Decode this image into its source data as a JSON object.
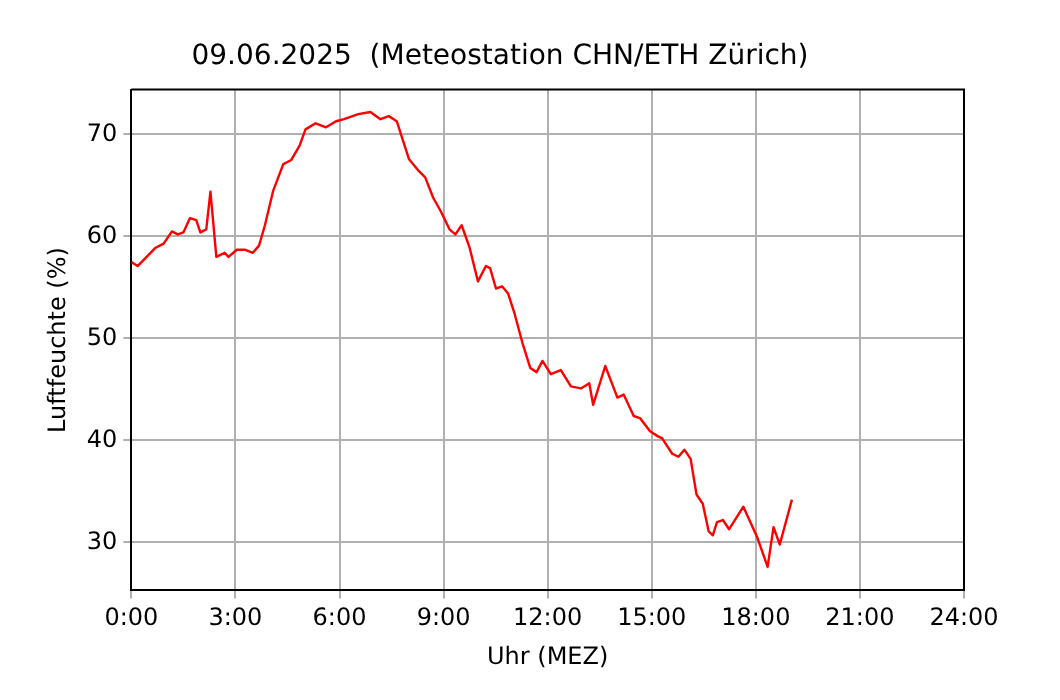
{
  "chart_data": {
    "type": "line",
    "title": "09.06.2025  (Meteostation CHN/ETH Zürich)",
    "xlabel": "Uhr (MEZ)",
    "ylabel": "Luftfeuchte (%)",
    "xlim": [
      0,
      24
    ],
    "xticks": [
      {
        "value": 0,
        "label": "0:00"
      },
      {
        "value": 3,
        "label": "3:00"
      },
      {
        "value": 6,
        "label": "6:00"
      },
      {
        "value": 9,
        "label": "9:00"
      },
      {
        "value": 12,
        "label": "12:00"
      },
      {
        "value": 15,
        "label": "15:00"
      },
      {
        "value": 18,
        "label": "18:00"
      },
      {
        "value": 21,
        "label": "21:00"
      },
      {
        "value": 24,
        "label": "24:00"
      }
    ],
    "ylim": [
      25.3,
      74.4
    ],
    "yticks": [
      30,
      40,
      50,
      60,
      70
    ],
    "grid": true,
    "legend": false,
    "marker": "none",
    "line_style": "solid",
    "x": [
      0,
      0.18,
      0.7,
      0.93,
      1.17,
      1.34,
      1.5,
      1.69,
      1.87,
      1.99,
      2.16,
      2.28,
      2.45,
      2.69,
      2.8,
      3.04,
      3.27,
      3.5,
      3.68,
      3.85,
      4.09,
      4.38,
      4.61,
      4.85,
      5.02,
      5.31,
      5.61,
      5.9,
      6.13,
      6.54,
      6.89,
      7.18,
      7.42,
      7.65,
      8.0,
      8.29,
      8.47,
      8.7,
      8.93,
      9.17,
      9.34,
      9.52,
      9.75,
      9.99,
      10.22,
      10.34,
      10.51,
      10.69,
      10.86,
      11.04,
      11.27,
      11.5,
      11.68,
      11.85,
      12.09,
      12.38,
      12.67,
      12.96,
      13.2,
      13.31,
      13.66,
      14.01,
      14.19,
      14.48,
      14.66,
      14.95,
      15.18,
      15.3,
      15.59,
      15.77,
      15.94,
      16.12,
      16.29,
      16.47,
      16.64,
      16.76,
      16.88,
      17.05,
      17.23,
      17.64,
      18.04,
      18.34,
      18.51,
      18.69,
      19.04
    ],
    "series": [
      {
        "color": "#ff0000",
        "values": [
          57.5,
          57.1,
          58.9,
          59.3,
          60.5,
          60.2,
          60.4,
          61.8,
          61.6,
          60.4,
          60.7,
          64.4,
          58.0,
          58.4,
          58.0,
          58.7,
          58.7,
          58.4,
          59.1,
          61.1,
          64.5,
          67.1,
          67.5,
          68.9,
          70.5,
          71.1,
          70.7,
          71.3,
          71.5,
          72.0,
          72.2,
          71.5,
          71.8,
          71.3,
          67.6,
          66.4,
          65.8,
          63.8,
          62.4,
          60.7,
          60.2,
          61.1,
          58.9,
          55.6,
          57.1,
          56.9,
          54.9,
          55.1,
          54.4,
          52.5,
          49.6,
          47.1,
          46.7,
          47.8,
          46.5,
          46.9,
          45.3,
          45.1,
          45.6,
          43.5,
          47.3,
          44.2,
          44.5,
          42.4,
          42.2,
          40.9,
          40.4,
          40.2,
          38.7,
          38.4,
          39.1,
          38.2,
          34.7,
          33.8,
          31.1,
          30.7,
          32.0,
          32.2,
          31.3,
          33.5,
          30.5,
          27.6,
          31.5,
          29.8,
          34.2
        ]
      }
    ]
  }
}
